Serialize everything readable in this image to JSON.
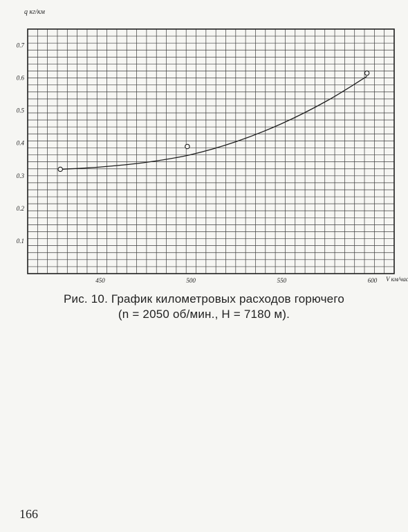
{
  "figure": {
    "caption_line_1": "Рис. 10. График километровых расходов горючего",
    "caption_line_2": "(n = 2050 об/мин., H = 7180 м)."
  },
  "page": {
    "number": "166"
  },
  "chart_data": {
    "type": "line",
    "ylabel": "q кг/км",
    "xlabel": "V км/час",
    "xlim": [
      410,
      612
    ],
    "ylim": [
      0,
      0.75
    ],
    "x_ticks": [
      450,
      500,
      550,
      600
    ],
    "x_tick_labels": [
      "450",
      "500",
      "550",
      "600"
    ],
    "y_ticks": [
      0.1,
      0.2,
      0.3,
      0.4,
      0.5,
      0.6,
      0.7
    ],
    "y_tick_labels": [
      "0.1",
      "0.2",
      "0.3",
      "0.4",
      "0.5",
      "0.6",
      "0.7"
    ],
    "grid": true,
    "legend": "none",
    "series": [
      {
        "style": "fitted-curve",
        "x": [
          428,
          450,
          475,
          500,
          525,
          550,
          575,
          597
        ],
        "y": [
          0.32,
          0.327,
          0.341,
          0.365,
          0.405,
          0.46,
          0.53,
          0.605
        ]
      },
      {
        "style": "measured-points",
        "x": [
          428,
          498,
          597
        ],
        "y": [
          0.32,
          0.39,
          0.615
        ]
      }
    ],
    "colors": {
      "paper": "#f6f6f3",
      "ink": "#1e1e1e",
      "grid": "#3c3c3c"
    }
  }
}
